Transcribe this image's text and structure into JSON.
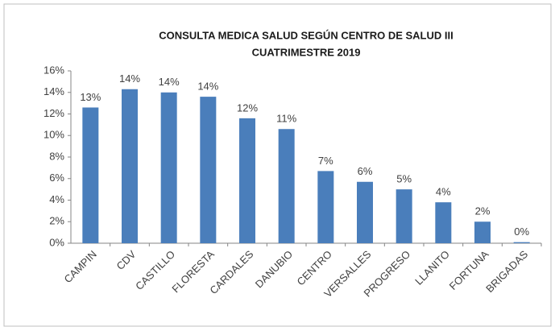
{
  "chart_data": {
    "type": "bar",
    "title": [
      "CONSULTA MEDICA SALUD  SEGÚN CENTRO DE  SALUD III",
      "CUATRIMESTRE 2019"
    ],
    "categories": [
      "CAMPIN",
      "CDV",
      "CASTILLO",
      "FLORESTA",
      "CARDALES",
      "DANUBIO",
      "CENTRO",
      "VERSALLES",
      "PROGRESO",
      "LLANITO",
      "FORTUNA",
      "BRIGADAS"
    ],
    "values": [
      12.6,
      14.3,
      14.0,
      13.6,
      11.6,
      10.6,
      6.7,
      5.7,
      5.0,
      3.8,
      2.0,
      0.1
    ],
    "value_labels": [
      "13%",
      "14%",
      "14%",
      "14%",
      "12%",
      "11%",
      "7%",
      "6%",
      "5%",
      "4%",
      "2%",
      "0%"
    ],
    "color": "#4a7ebb",
    "ylim": [
      0,
      16
    ],
    "yticks": [
      {
        "value": 0,
        "label": "0%"
      },
      {
        "value": 2,
        "label": "2%"
      },
      {
        "value": 4,
        "label": "4%"
      },
      {
        "value": 6,
        "label": "6%"
      },
      {
        "value": 8,
        "label": "8%"
      },
      {
        "value": 10,
        "label": "10%"
      },
      {
        "value": 12,
        "label": "12%"
      },
      {
        "value": 14,
        "label": "14%"
      },
      {
        "value": 16,
        "label": "16%"
      }
    ],
    "grid": false
  }
}
